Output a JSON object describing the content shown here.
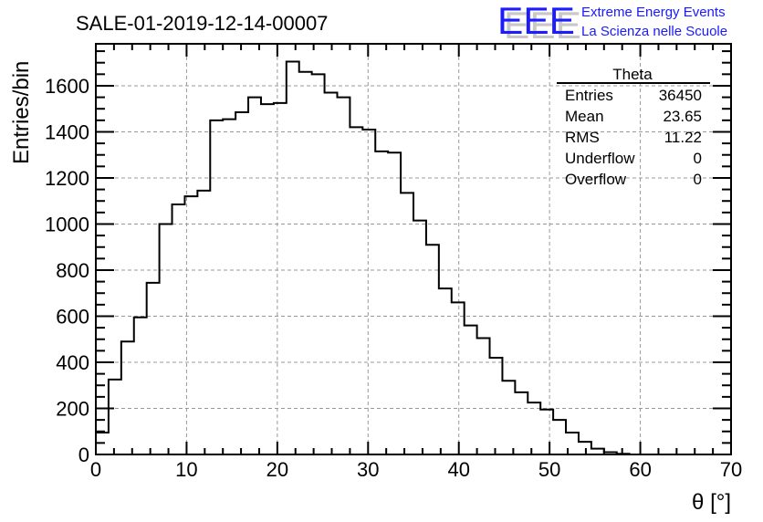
{
  "header": {
    "title": "SALE-01-2019-12-14-00007",
    "logo_text": "EEE",
    "logo_line1": "Extreme Energy Events",
    "logo_line2": "La Scienza nelle Scuole"
  },
  "stats": {
    "name": "Theta",
    "rows": [
      {
        "label": "Entries",
        "value": "36450"
      },
      {
        "label": "Mean",
        "value": "23.65"
      },
      {
        "label": "RMS",
        "value": "11.22"
      },
      {
        "label": "Underflow",
        "value": "0"
      },
      {
        "label": "Overflow",
        "value": "0"
      }
    ]
  },
  "colors": {
    "logo": "#1a1aff",
    "line": "#000000",
    "grid": "#999999"
  },
  "chart_data": {
    "type": "histogram",
    "title": "SALE-01-2019-12-14-00007",
    "xlabel": "θ [°]",
    "ylabel": "Entries/bin",
    "xlim": [
      0,
      70
    ],
    "ylim": [
      0,
      1782
    ],
    "bin_width": 1.4,
    "xticks": [
      0,
      10,
      20,
      30,
      40,
      50,
      60,
      70
    ],
    "yticks": [
      0,
      200,
      400,
      600,
      800,
      1000,
      1200,
      1400,
      1600
    ],
    "grid": true,
    "values": [
      95,
      325,
      490,
      595,
      745,
      1000,
      1085,
      1120,
      1145,
      1450,
      1455,
      1485,
      1550,
      1520,
      1525,
      1705,
      1660,
      1650,
      1570,
      1550,
      1420,
      1410,
      1315,
      1310,
      1135,
      1015,
      910,
      720,
      660,
      560,
      505,
      420,
      320,
      270,
      225,
      195,
      150,
      95,
      55,
      25,
      10,
      3,
      0,
      0,
      0,
      0,
      0,
      0,
      0,
      0
    ]
  }
}
